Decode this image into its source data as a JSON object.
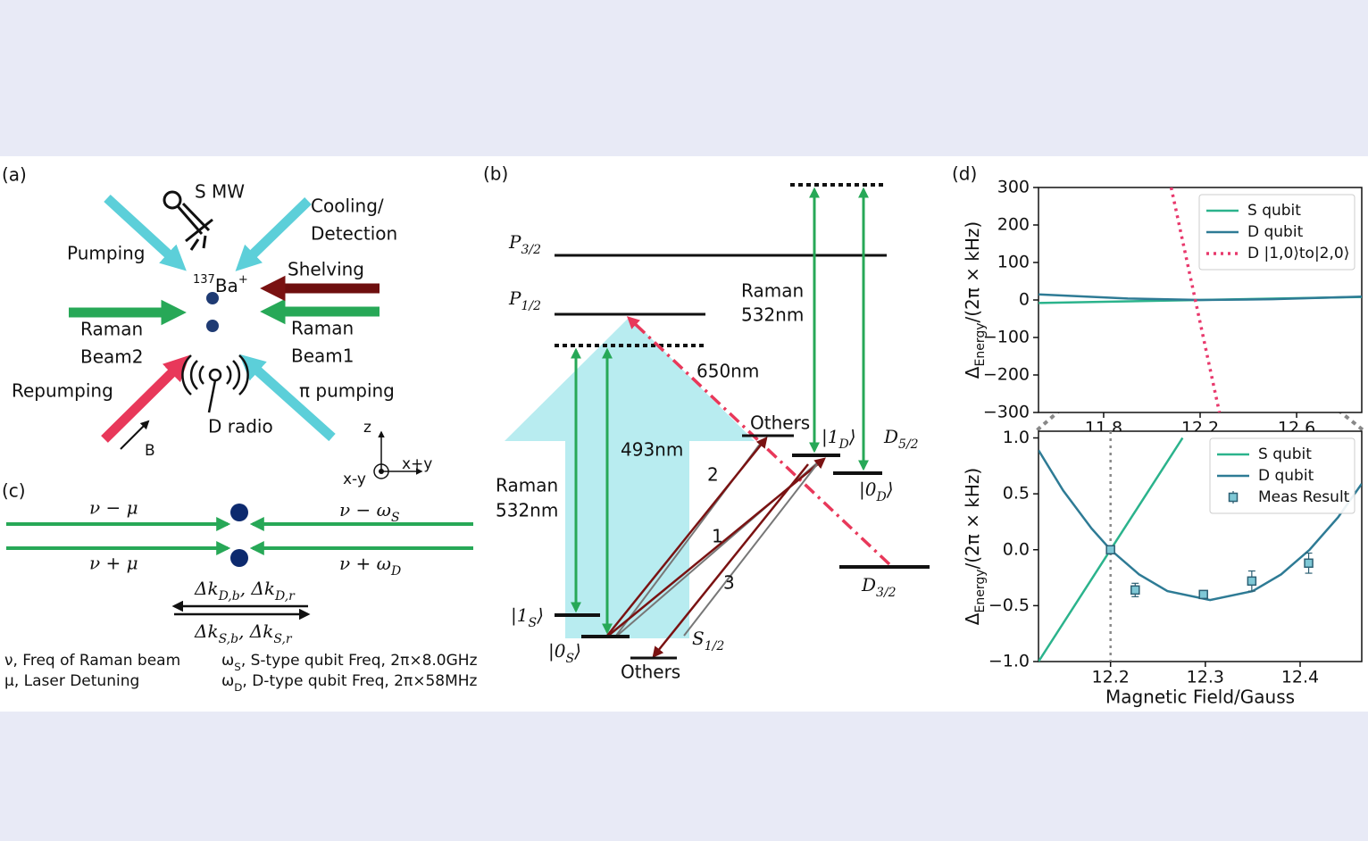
{
  "panel_a": {
    "label": "(a)",
    "s_mw": "S MW",
    "cooling": "Cooling/",
    "detection": "Detection",
    "pumping": "Pumping",
    "shelving": "Shelving",
    "ion": {
      "sup": "137",
      "base": "Ba",
      "sup2": "+"
    },
    "raman_beam2": [
      "Raman",
      "Beam2"
    ],
    "raman_beam1": [
      "Raman",
      "Beam1"
    ],
    "repumping": "Repumping",
    "pi_pumping": "π pumping",
    "d_radio": "D radio",
    "b_field": "B",
    "axis_z": "z",
    "axis_xy_plus": "x+y",
    "axis_xy_minus": "x-y"
  },
  "panel_b": {
    "label": "(b)",
    "p32": {
      "base": "P",
      "sub": "3/2"
    },
    "p12": {
      "base": "P",
      "sub": "1/2"
    },
    "wl_650": "650nm",
    "raman_right": [
      "Raman",
      "532nm"
    ],
    "raman_left": [
      "Raman",
      "532nm"
    ],
    "wl_493": "493nm",
    "others_top": "Others",
    "ket_1d": {
      "base": "|1",
      "sub": "D",
      "post": "⟩"
    },
    "d52": {
      "base": "D",
      "sub": "5/2"
    },
    "ket_0d": {
      "base": "|0",
      "sub": "D",
      "post": "⟩"
    },
    "d32": {
      "base": "D",
      "sub": "3/2"
    },
    "path_2": "2",
    "path_1": "1",
    "path_3": "3",
    "ket_1s": {
      "base": "|1",
      "sub": "S",
      "post": "⟩"
    },
    "ket_0s": {
      "base": "|0",
      "sub": "S",
      "post": "⟩"
    },
    "s12": {
      "base": "S",
      "sub": "1/2"
    },
    "others_bottom": "Others"
  },
  "panel_c": {
    "label": "(c)",
    "top_left": "ν − μ",
    "top_right": {
      "base": "ν − ω",
      "sub": "S"
    },
    "bottom_left": "ν + μ",
    "bottom_right": {
      "base": "ν + ω",
      "sub": "D"
    },
    "dk_d": {
      "base": "Δk",
      "sub": "D,b",
      "mid": ", Δk",
      "sub2": "D,r"
    },
    "dk_s": {
      "base": "Δk",
      "sub": "S,b",
      "mid": ", Δk",
      "sub2": "S,r"
    },
    "notes": [
      {
        "base": "ν, Freq of Raman beam"
      },
      {
        "base": "μ, Laser Detuning"
      },
      {
        "base": "ω",
        "sub": "S",
        "post": ", S-type qubit Freq, 2π×8.0GHz"
      },
      {
        "base": "ω",
        "sub": "D",
        "post": ", D-type qubit Freq, 2π×58MHz"
      }
    ]
  },
  "panel_d": {
    "label": "(d)"
  },
  "chart_data": [
    {
      "type": "line",
      "xlim": [
        11.53,
        12.87
      ],
      "xticks": [
        11.8,
        12.2,
        12.6
      ],
      "ylim": [
        -300,
        300
      ],
      "yticks": [
        {
          "value": -300,
          "label": "−300"
        },
        {
          "value": -200,
          "label": "−200"
        },
        {
          "value": -100,
          "label": "−100"
        },
        0,
        100,
        200,
        300
      ],
      "ylabel": {
        "base": "Δ",
        "sub": "Energy",
        "post": "/(2π × kHz)"
      },
      "legend": "upper right",
      "series": [
        {
          "name": "S qubit",
          "color": "#2bb38c",
          "style": "solid",
          "x": [
            11.53,
            12.2,
            12.87
          ],
          "values": [
            -8,
            0,
            8
          ]
        },
        {
          "name": "D qubit",
          "color": "#2e7b95",
          "style": "solid",
          "x": [
            11.53,
            11.9,
            12.2,
            12.5,
            12.87
          ],
          "values": [
            15,
            4,
            0,
            2,
            9
          ]
        },
        {
          "name": "D |1,0⟩to|2,0⟩",
          "color": "#e8386c",
          "style": "dotted",
          "x": [
            12.08,
            12.28
          ],
          "values": [
            300,
            -300
          ]
        }
      ]
    },
    {
      "type": "line",
      "xlim": [
        12.124,
        12.465
      ],
      "xticks": [
        12.2,
        12.3,
        12.4
      ],
      "ylim": [
        -1.0,
        1.06
      ],
      "yticks": [
        {
          "value": -1.0,
          "label": "−1.0"
        },
        {
          "value": -0.5,
          "label": "−0.5"
        },
        {
          "value": 0.0,
          "label": "0.0"
        },
        {
          "value": 0.5,
          "label": "0.5"
        },
        {
          "value": 1.0,
          "label": "1.0"
        }
      ],
      "ylabel": {
        "base": "Δ",
        "sub": "Energy",
        "post": "/(2π × kHz)"
      },
      "xlabel": "Magnetic Field/Gauss",
      "vline": 12.2,
      "legend": "upper right",
      "series": [
        {
          "name": "S qubit",
          "color": "#2bb38c",
          "style": "solid",
          "x": [
            12.124,
            12.276
          ],
          "values": [
            -1.0,
            1.0
          ]
        },
        {
          "name": "D qubit",
          "color": "#2e7b95",
          "style": "solid",
          "x": [
            12.124,
            12.15,
            12.18,
            12.2,
            12.23,
            12.26,
            12.305,
            12.35,
            12.38,
            12.41,
            12.44,
            12.465
          ],
          "values": [
            0.89,
            0.53,
            0.19,
            0.0,
            -0.22,
            -0.37,
            -0.45,
            -0.37,
            -0.22,
            0.0,
            0.29,
            0.59
          ]
        },
        {
          "name": "Meas Result",
          "color": "#2b5f73",
          "style": "errorbar",
          "x": [
            12.2,
            12.226,
            12.298,
            12.349,
            12.409
          ],
          "values": [
            0.0,
            -0.36,
            -0.4,
            -0.28,
            -0.12
          ],
          "errors": [
            0.03,
            0.06,
            0.03,
            0.09,
            0.09
          ]
        }
      ]
    }
  ]
}
